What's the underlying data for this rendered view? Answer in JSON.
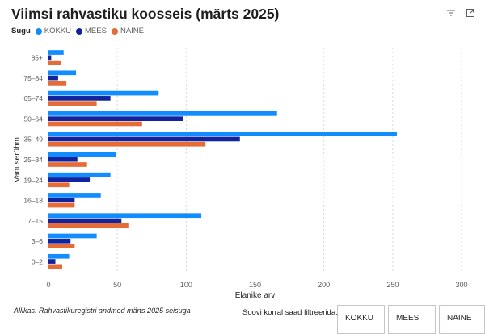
{
  "header": {
    "title": "Viimsi rahvastiku koosseis (märts 2025)"
  },
  "toolbar": {
    "filter_icon": "filter-icon",
    "focus_icon": "focus-mode-icon"
  },
  "legend": {
    "title": "Sugu"
  },
  "colors": {
    "KOKKU": "#118dff",
    "MEES": "#12239e",
    "NAINE": "#e66c37"
  },
  "chart_data": {
    "type": "bar",
    "orientation": "horizontal",
    "categories": [
      "85+",
      "75–84",
      "65–74",
      "50–64",
      "35–49",
      "25–34",
      "19–24",
      "16–18",
      "7–15",
      "3–6",
      "0–2"
    ],
    "series": [
      {
        "name": "KOKKU",
        "values": [
          11,
          20,
          80,
          166,
          253,
          49,
          45,
          38,
          111,
          35,
          15
        ]
      },
      {
        "name": "MEES",
        "values": [
          2,
          7,
          45,
          98,
          139,
          21,
          30,
          19,
          53,
          16,
          5
        ]
      },
      {
        "name": "NAINE",
        "values": [
          9,
          13,
          35,
          68,
          114,
          28,
          15,
          19,
          58,
          19,
          10
        ]
      }
    ],
    "xlabel": "Elanike arv",
    "ylabel": "Vanuserühm",
    "xlim": [
      0,
      300
    ],
    "xticks": [
      0,
      50,
      100,
      150,
      200,
      250,
      300
    ],
    "grid": true,
    "legend_position": "top-left"
  },
  "footer": {
    "source": "Allikas: Rahvastikuregistri andmed märts 2025 seisuga",
    "filter_prompt": "Soovi korral saad filtreerida:",
    "buttons": [
      "KOKKU",
      "MEES",
      "NAINE"
    ]
  }
}
